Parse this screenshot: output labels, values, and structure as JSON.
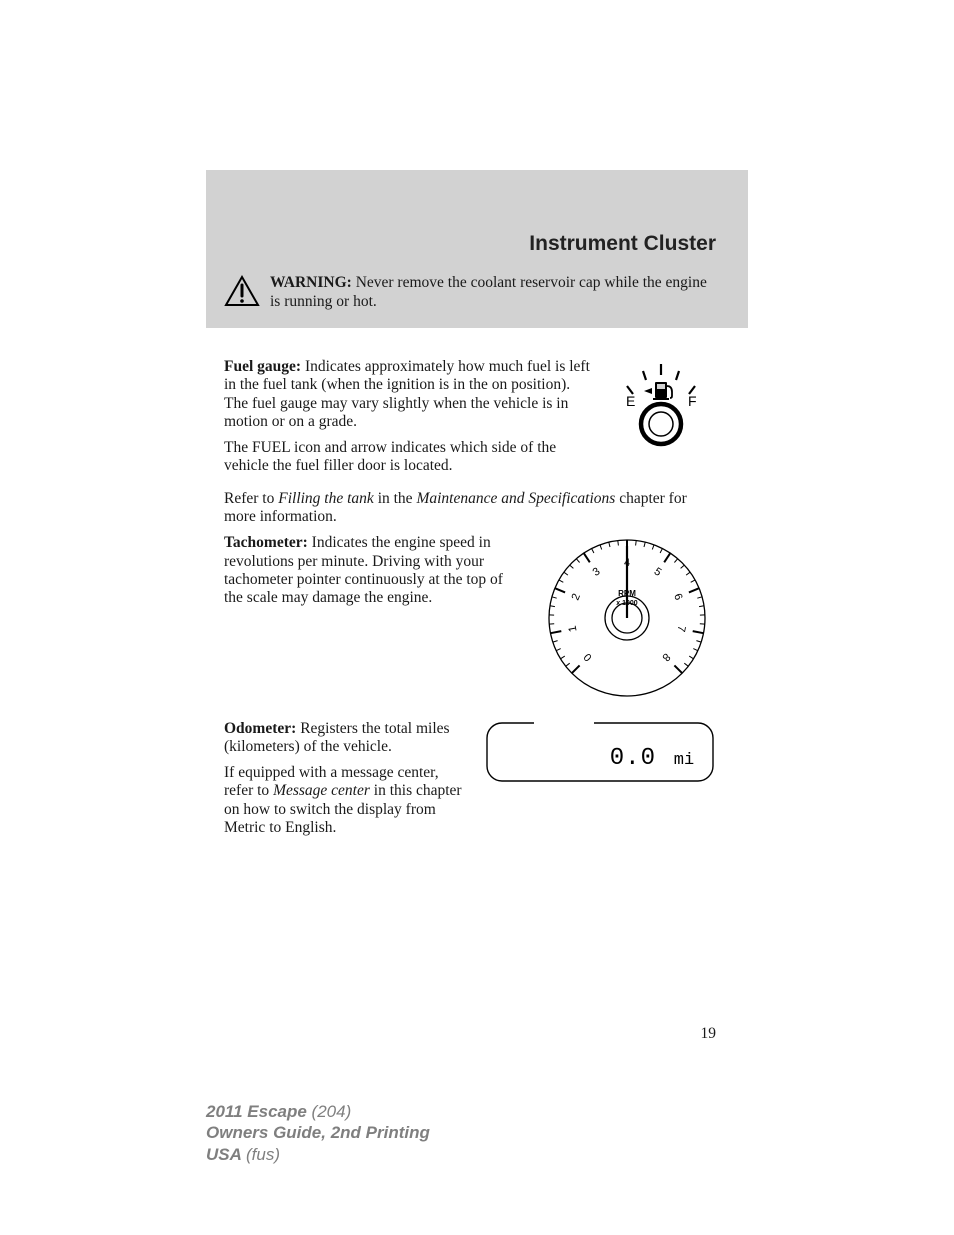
{
  "header": {
    "section_title": "Instrument Cluster",
    "warning_label": "WARNING:",
    "warning_text": " Never remove the coolant reservoir cap while the engine is running or hot."
  },
  "fuel_gauge": {
    "title": "Fuel gauge:",
    "p1": " Indicates approximately how much fuel is left in the fuel tank (when the ignition is in the on position). The fuel gauge may vary slightly when the vehicle is in motion or on a grade.",
    "p2": "The FUEL icon and arrow indicates which side of the vehicle the fuel filler door is located.",
    "ref_prefix": "Refer to ",
    "ref_italic1": "Filling the tank",
    "ref_mid": " in the ",
    "ref_italic2": "Maintenance and Specifications",
    "ref_suffix": " chapter for more information.",
    "icon": {
      "label_E": "E",
      "label_F": "F",
      "stroke": "#000000",
      "fill": "#000000"
    }
  },
  "tachometer": {
    "title": "Tachometer:",
    "p1": " Indicates the engine speed in revolutions per minute. Driving with your tachometer pointer continuously at the top of the scale may damage the engine.",
    "icon": {
      "numbers": [
        "0",
        "1",
        "2",
        "3",
        "4",
        "5",
        "6",
        "7",
        "8"
      ],
      "label_rpm": "RPM",
      "label_x1000": "x 1000",
      "stroke": "#000000"
    }
  },
  "odometer": {
    "title": "Odometer:",
    "p1": " Registers the total miles (kilometers) of the vehicle.",
    "p2_prefix": "If equipped with a message center, refer to ",
    "p2_italic": "Message center",
    "p2_suffix": " in this chapter on how to switch the display from Metric to English.",
    "icon": {
      "value": "0.0",
      "unit": "mi",
      "stroke": "#000000",
      "digit_font": "monospace"
    }
  },
  "page_number": "19",
  "footer": {
    "line1_bold": "2011 Escape ",
    "line1_rest": "(204)",
    "line2": "Owners Guide, 2nd Printing",
    "line3_bold": "USA ",
    "line3_rest": "(fus)"
  }
}
